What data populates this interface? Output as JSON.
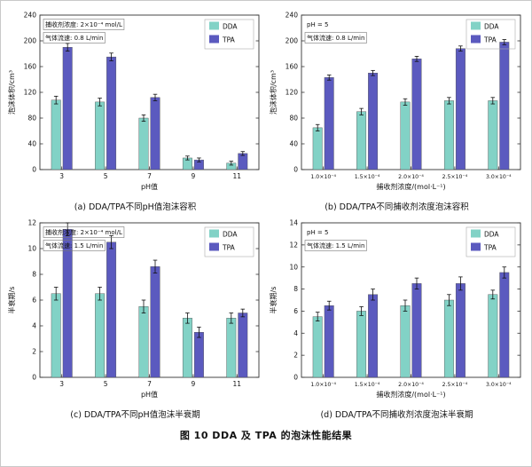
{
  "figure_caption": "图 10  DDA 及 TPA 的泡沫性能结果",
  "legend": [
    "DDA",
    "TPA"
  ],
  "colors": {
    "DDA": "#82d2c6",
    "TPA": "#5b5abf",
    "axis": "#333333",
    "error_bar": "#111111"
  },
  "chart_data": [
    {
      "id": "a",
      "type": "bar",
      "caption": "(a) DDA/TPA不同pH值泡沫容积",
      "annotations": [
        {
          "text": "捕收剂浓度: 2×10⁻⁴ mol/L",
          "boxed": true
        },
        {
          "text": "气体流速: 0.8 L/min",
          "boxed": true
        }
      ],
      "xlabel": "pH值",
      "ylabel": "泡沫体积/cm³",
      "ylim": [
        0,
        240
      ],
      "ytick_step": 40,
      "grid": false,
      "legend_position": "top-right",
      "categories": [
        "3",
        "5",
        "7",
        "9",
        "11"
      ],
      "series": [
        {
          "name": "DDA",
          "color": "#82d2c6",
          "values": [
            108,
            105,
            80,
            18,
            10
          ],
          "errors": [
            6,
            6,
            5,
            3,
            3
          ]
        },
        {
          "name": "TPA",
          "color": "#5b5abf",
          "values": [
            190,
            175,
            112,
            15,
            25
          ],
          "errors": [
            6,
            6,
            5,
            3,
            3
          ]
        }
      ]
    },
    {
      "id": "b",
      "type": "bar",
      "caption": "(b) DDA/TPA不同捕收剂浓度泡沫容积",
      "annotations": [
        {
          "text": "pH = 5",
          "boxed": false
        },
        {
          "text": "气体流速: 0.8 L/min",
          "boxed": true
        }
      ],
      "xlabel": "捕收剂浓度/(mol·L⁻¹)",
      "ylabel": "泡沫体积/cm³",
      "ylim": [
        0,
        240
      ],
      "ytick_step": 40,
      "grid": false,
      "legend_position": "top-right",
      "categories": [
        "1.0×10⁻⁴",
        "1.5×10⁻⁴",
        "2.0×10⁻⁴",
        "2.5×10⁻⁴",
        "3.0×10⁻⁴"
      ],
      "series": [
        {
          "name": "DDA",
          "color": "#82d2c6",
          "values": [
            65,
            90,
            105,
            107,
            107
          ],
          "errors": [
            5,
            5,
            5,
            5,
            5
          ]
        },
        {
          "name": "TPA",
          "color": "#5b5abf",
          "values": [
            143,
            150,
            172,
            188,
            198
          ],
          "errors": [
            4,
            4,
            4,
            4,
            4
          ]
        }
      ]
    },
    {
      "id": "c",
      "type": "bar",
      "caption": "(c) DDA/TPA不同pH值泡沫半衰期",
      "annotations": [
        {
          "text": "捕收剂浓度: 2×10⁻⁴ mol/L",
          "boxed": true
        },
        {
          "text": "气体流速: 1.5 L/min",
          "boxed": true
        }
      ],
      "xlabel": "pH值",
      "ylabel": "半衰期/s",
      "ylim": [
        0,
        12
      ],
      "ytick_step": 2,
      "grid": false,
      "legend_position": "top-right",
      "categories": [
        "3",
        "5",
        "7",
        "9",
        "11"
      ],
      "series": [
        {
          "name": "DDA",
          "color": "#82d2c6",
          "values": [
            6.5,
            6.5,
            5.5,
            4.6,
            4.6
          ],
          "errors": [
            0.5,
            0.5,
            0.5,
            0.4,
            0.4
          ]
        },
        {
          "name": "TPA",
          "color": "#5b5abf",
          "values": [
            11.5,
            10.5,
            8.6,
            3.5,
            5.0
          ],
          "errors": [
            0.5,
            0.5,
            0.5,
            0.4,
            0.3
          ]
        }
      ]
    },
    {
      "id": "d",
      "type": "bar",
      "caption": "(d) DDA/TPA不同捕收剂浓度泡沫半衰期",
      "annotations": [
        {
          "text": "pH = 5",
          "boxed": false
        },
        {
          "text": "气体流速: 1.5 L/min",
          "boxed": true
        }
      ],
      "xlabel": "捕收剂浓度/(mol·L⁻¹)",
      "ylabel": "半衰期/s",
      "ylim": [
        0,
        14
      ],
      "ytick_step": 2,
      "grid": false,
      "legend_position": "top-right",
      "categories": [
        "1.0×10⁻⁴",
        "1.5×10⁻⁴",
        "2.0×10⁻⁴",
        "2.5×10⁻⁴",
        "3.0×10⁻⁴"
      ],
      "series": [
        {
          "name": "DDA",
          "color": "#82d2c6",
          "values": [
            5.5,
            6.0,
            6.5,
            7.0,
            7.5
          ],
          "errors": [
            0.4,
            0.4,
            0.5,
            0.5,
            0.4
          ]
        },
        {
          "name": "TPA",
          "color": "#5b5abf",
          "values": [
            6.5,
            7.5,
            8.5,
            8.5,
            9.5
          ],
          "errors": [
            0.4,
            0.5,
            0.5,
            0.6,
            0.5
          ]
        }
      ]
    }
  ]
}
